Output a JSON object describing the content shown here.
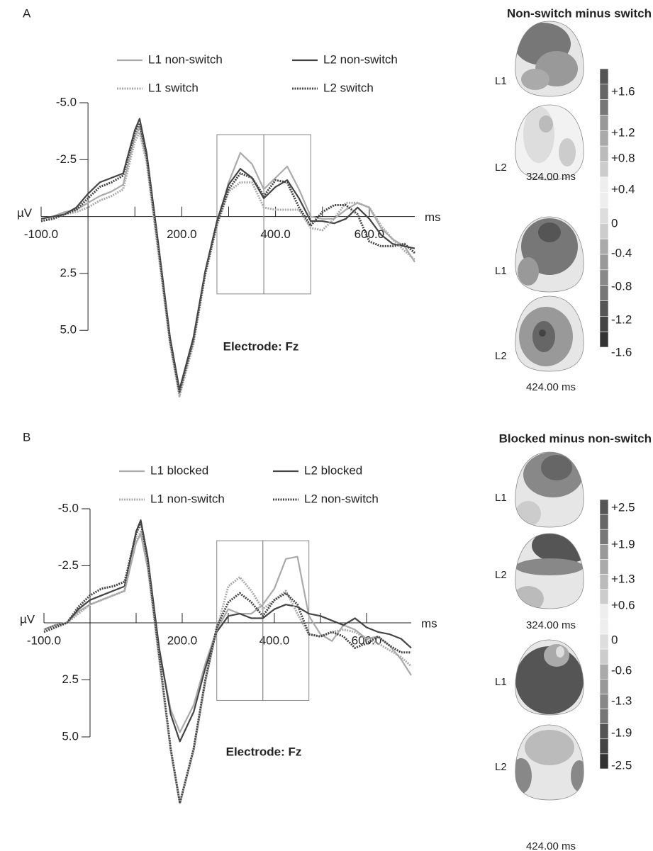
{
  "chart_data": [
    {
      "type": "line",
      "panel": "A",
      "electrode": "Electrode: Fz",
      "ylabel": "µV",
      "xlabel": "ms",
      "xlim": [
        -100,
        697
      ],
      "ylim": [
        8.2,
        -5.0
      ],
      "xticks": [
        {
          "value": -100,
          "label": "-100.0"
        },
        {
          "value": 200,
          "label": "200.0"
        },
        {
          "value": 400,
          "label": "400.0"
        },
        {
          "value": 600,
          "label": "600.0"
        }
      ],
      "xminorticks": [
        0,
        100,
        300,
        500
      ],
      "yticks": [
        {
          "value": -5,
          "label": "-5.0"
        },
        -2.5,
        2.5,
        {
          "value": 5,
          "label": "5.0"
        }
      ],
      "windows": [
        [
          275,
          375
        ],
        [
          375,
          475
        ]
      ],
      "window_ylim": [
        3.4,
        -3.6
      ],
      "x": [
        -100,
        -75,
        -50,
        -25,
        0,
        25,
        50,
        75,
        100,
        110,
        125,
        150,
        175,
        195,
        225,
        250,
        275,
        300,
        325,
        350,
        375,
        400,
        425,
        450,
        475,
        500,
        525,
        550,
        575,
        600,
        625,
        650,
        675,
        697
      ],
      "series": [
        {
          "name": "L1 non-switch",
          "color": "#aaaaaa",
          "style": "solid",
          "values": [
            0.1,
            0,
            -0.2,
            -0.3,
            -0.6,
            -0.9,
            -1.1,
            -1.4,
            -3.5,
            -3.9,
            -2.5,
            1.5,
            5.5,
            7.8,
            5.5,
            2.5,
            0.3,
            -1.5,
            -2.8,
            -2.3,
            -1.2,
            -1.7,
            -2.2,
            -1.2,
            0,
            0.1,
            0.1,
            -0.3,
            -0.6,
            -0.4,
            0.5,
            1.0,
            1.3,
            2.0
          ]
        },
        {
          "name": "L2 non-switch",
          "color": "#444444",
          "style": "solid",
          "values": [
            0.1,
            0,
            -0.1,
            -0.4,
            -1.0,
            -1.5,
            -1.7,
            -1.9,
            -3.8,
            -4.3,
            -2.8,
            1.2,
            5.3,
            7.6,
            5.3,
            2.4,
            0.2,
            -1.4,
            -2.1,
            -1.7,
            -0.8,
            -1.3,
            -1.6,
            -0.8,
            0.2,
            0.2,
            0.3,
            0.1,
            -0.4,
            0.1,
            0.8,
            1.2,
            1.3,
            1.4
          ]
        },
        {
          "name": "L1 switch",
          "color": "#aaaaaa",
          "style": "dotted",
          "values": [
            0.2,
            0.1,
            -0.1,
            -0.2,
            -0.4,
            -0.7,
            -0.9,
            -1.2,
            -3.3,
            -3.7,
            -2.4,
            1.6,
            5.6,
            7.9,
            5.6,
            2.6,
            0.4,
            -1.1,
            -1.5,
            -1.5,
            -0.4,
            -0.3,
            -0.3,
            -0.3,
            0.5,
            0.6,
            0.1,
            -0.6,
            -0.6,
            -0.4,
            0.4,
            1.0,
            1.5,
            1.9
          ]
        },
        {
          "name": "L2 switch",
          "color": "#444444",
          "style": "dotted",
          "values": [
            0.2,
            0.1,
            -0.1,
            -0.3,
            -0.8,
            -1.3,
            -1.5,
            -1.8,
            -3.7,
            -4.1,
            -2.7,
            1.3,
            5.4,
            7.7,
            5.4,
            2.5,
            0.3,
            -1.2,
            -1.9,
            -1.7,
            -0.9,
            -1.6,
            -1.5,
            -0.4,
            0.4,
            -0.2,
            -0.5,
            -0.5,
            -0.1,
            1.1,
            1.3,
            1.3,
            1.2,
            1.6
          ]
        }
      ]
    },
    {
      "type": "line",
      "panel": "B",
      "electrode": "Electrode: Fz",
      "ylabel": "µV",
      "xlabel": "ms",
      "xlim": [
        -100,
        697
      ],
      "ylim": [
        8.2,
        -5.0
      ],
      "xticks": [
        {
          "value": -100,
          "label": "-100.0"
        },
        {
          "value": 200,
          "label": "200.0"
        },
        {
          "value": 400,
          "label": "400.0"
        },
        {
          "value": 600,
          "label": "600.0"
        }
      ],
      "xminorticks": [
        0,
        100,
        300,
        500
      ],
      "yticks": [
        {
          "value": -5,
          "label": "-5.0"
        },
        -2.5,
        2.5,
        {
          "value": 5,
          "label": "5.0"
        }
      ],
      "windows": [
        [
          275,
          375
        ],
        [
          375,
          475
        ]
      ],
      "window_ylim": [
        3.4,
        -3.6
      ],
      "x": [
        -100,
        -75,
        -50,
        -25,
        0,
        25,
        50,
        75,
        100,
        110,
        125,
        150,
        175,
        195,
        225,
        250,
        275,
        300,
        325,
        350,
        375,
        400,
        425,
        450,
        475,
        500,
        525,
        550,
        575,
        600,
        625,
        650,
        675,
        697
      ],
      "series": [
        {
          "name": "L1 blocked",
          "color": "#aaaaaa",
          "style": "solid",
          "values": [
            0.3,
            0.1,
            0,
            -0.5,
            -0.8,
            -1.0,
            -1.2,
            -1.4,
            -3.5,
            -3.9,
            -2.4,
            1.2,
            3.8,
            4.8,
            3.6,
            1.8,
            0.3,
            -0.6,
            -0.4,
            -0.4,
            -0.8,
            -1.5,
            -2.8,
            -2.9,
            -0.3,
            0.5,
            0.8,
            0.1,
            0.3,
            0.7,
            0.6,
            1.0,
            1.6,
            2.3
          ]
        },
        {
          "name": "L2 blocked",
          "color": "#444444",
          "style": "solid",
          "values": [
            0.3,
            0.1,
            0,
            -0.6,
            -1.0,
            -1.2,
            -1.4,
            -1.6,
            -4.0,
            -4.5,
            -2.9,
            1.1,
            4.0,
            5.2,
            3.9,
            2.0,
            0.4,
            -0.3,
            -0.4,
            -0.2,
            -0.2,
            -0.6,
            -0.8,
            -0.7,
            -0.4,
            -0.3,
            -0.1,
            0.1,
            -0.2,
            0.2,
            0.4,
            0.5,
            0.7,
            1.1
          ]
        },
        {
          "name": "L1 non-switch",
          "color": "#aaaaaa",
          "style": "dotted",
          "values": [
            0.3,
            0.1,
            0,
            -0.4,
            -0.8,
            -1.0,
            -1.2,
            -1.4,
            -3.6,
            -4.0,
            -2.5,
            1.6,
            5.6,
            7.9,
            5.6,
            2.6,
            0.3,
            -1.6,
            -2.0,
            -1.4,
            -0.6,
            -1.0,
            -1.4,
            -0.4,
            0.5,
            0.6,
            0.4,
            0.3,
            0.4,
            0.7,
            0.9,
            1.2,
            1.5,
            1.9
          ]
        },
        {
          "name": "L2 non-switch",
          "color": "#444444",
          "style": "dotted",
          "values": [
            0.4,
            0.2,
            0,
            -0.7,
            -1.2,
            -1.5,
            -1.6,
            -1.8,
            -3.9,
            -4.4,
            -2.8,
            1.4,
            5.5,
            7.9,
            5.5,
            2.5,
            0.2,
            -0.9,
            -1.3,
            -0.9,
            -0.3,
            -1.0,
            -1.3,
            -0.8,
            0.5,
            0.6,
            0.4,
            0.6,
            1.1,
            0.9,
            0.6,
            1.0,
            1.3,
            1.3
          ]
        }
      ]
    }
  ],
  "maps": [
    {
      "title": "Non-switch minus switch",
      "rows": [
        "L1",
        "L2",
        "L1",
        "L2"
      ],
      "times": [
        "324.00 ms",
        "424.00 ms"
      ],
      "colorbar": [
        "+1.6",
        "+1.2",
        "+0.8",
        "+0.4",
        "0",
        "-0.4",
        "-0.8",
        "-1.2",
        "-1.6"
      ]
    },
    {
      "title": "Blocked minus non-switch",
      "rows": [
        "L1",
        "L2",
        "L1",
        "L2"
      ],
      "times": [
        "324.00 ms",
        "424.00 ms"
      ],
      "colorbar": [
        "+2.5",
        "+1.9",
        "+1.3",
        "+0.6",
        "0",
        "-0.6",
        "-1.3",
        "-1.9",
        "-2.5"
      ]
    }
  ]
}
